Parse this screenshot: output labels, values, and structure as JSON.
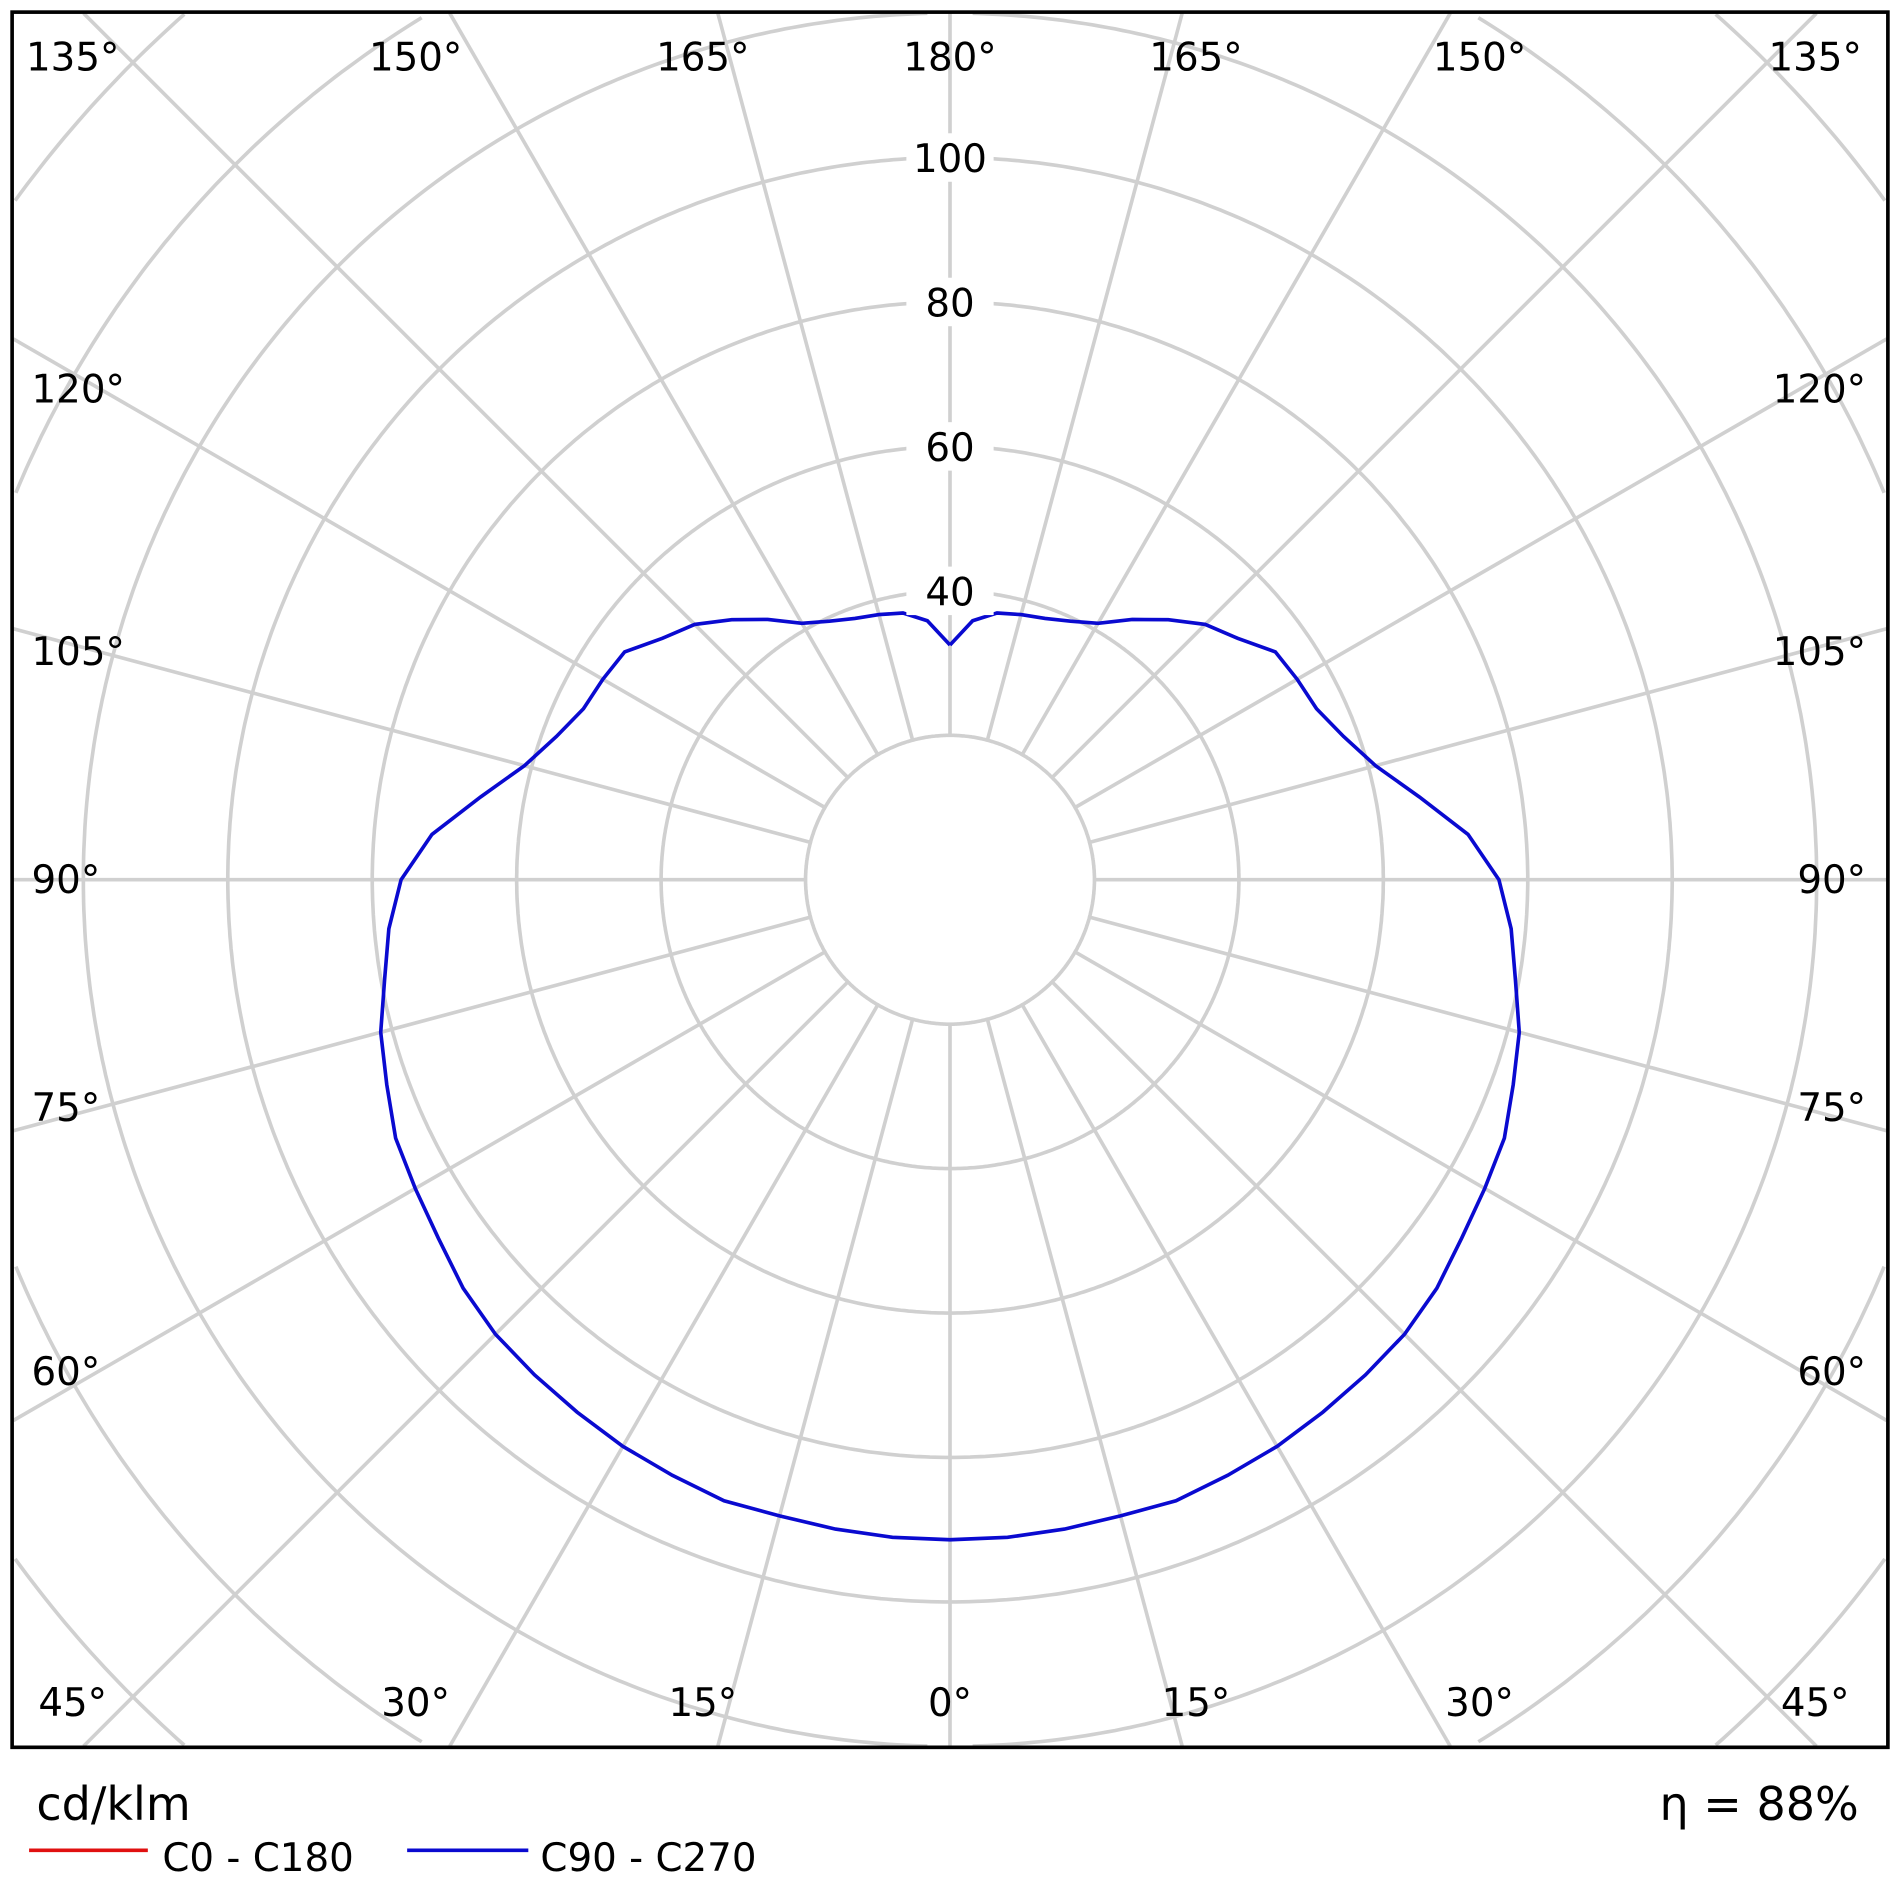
{
  "chart_data": {
    "type": "polar",
    "unit_label": "cd/klm",
    "efficiency_label": "η = 88%",
    "radial_ticks": [
      40,
      60,
      80,
      100
    ],
    "radial_tick_labels": [
      "40",
      "60",
      "80",
      "100"
    ],
    "angle_labels_top": [
      "135°",
      "150°",
      "165°",
      "180°",
      "165°",
      "150°",
      "135°"
    ],
    "angle_labels_left": [
      "120°",
      "105°",
      "90°",
      "75°",
      "60°"
    ],
    "angle_labels_right": [
      "120°",
      "105°",
      "90°",
      "75°",
      "60°"
    ],
    "angle_labels_bottom": [
      "45°",
      "30°",
      "15°",
      "0°",
      "15°",
      "30°",
      "45°"
    ],
    "grid": true,
    "grid_angle_step_deg": 15,
    "grid_radius_step": 20,
    "legend_position": "bottom-left",
    "series": [
      {
        "name": "C0 - C180",
        "color": "#e01010",
        "gamma": [],
        "values": []
      },
      {
        "name": "C90 - C270",
        "color": "#0a0ad0",
        "gamma": [
          0,
          5,
          10,
          15,
          20,
          25,
          30,
          35,
          40,
          45,
          50,
          55,
          60,
          65,
          70,
          75,
          80,
          85,
          90,
          95,
          100,
          105,
          110,
          115,
          120,
          125,
          130,
          135,
          140,
          145,
          150,
          155,
          160,
          165,
          170,
          175,
          180
        ],
        "values": [
          91.4,
          91.4,
          91.3,
          91.2,
          91.5,
          91,
          90.6,
          90,
          89.5,
          89,
          88,
          86.5,
          85.5,
          84.7,
          83,
          81.6,
          79.5,
          78,
          76,
          72,
          66,
          61,
          58,
          56,
          55.5,
          55,
          52,
          50,
          47,
          44,
          41,
          39.5,
          38.5,
          38,
          37.5,
          36,
          32.5
        ]
      }
    ]
  }
}
